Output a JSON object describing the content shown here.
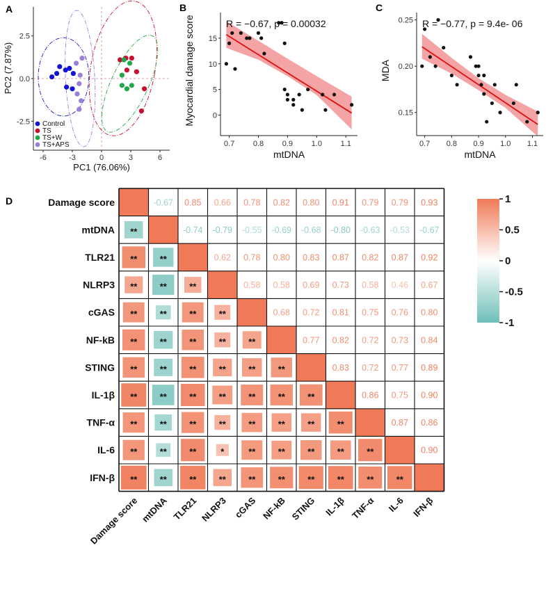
{
  "chart_data": [
    {
      "panel": "A",
      "type": "scatter",
      "xlabel": "PC1 (76.06%)",
      "ylabel": "PC2 (7.87%)",
      "xlim": [
        -7,
        7
      ],
      "ylim": [
        -4.2,
        4.2
      ],
      "xticks": [
        -6,
        -3,
        0,
        3,
        6
      ],
      "yticks": [
        -2.5,
        0.0,
        2.5
      ],
      "ytick_labels": [
        "-2.5",
        "0.0",
        "2.5"
      ],
      "legend": [
        "Control",
        "TS",
        "TS+W",
        "TS+APS"
      ],
      "colors": {
        "Control": "#1414d4",
        "TS": "#c8102e",
        "TS+W": "#22a84a",
        "TS+APS": "#9a7fd6"
      },
      "series": [
        {
          "name": "Control",
          "points": [
            [
              -5.1,
              0.1
            ],
            [
              -4.6,
              0.3
            ],
            [
              -4.3,
              0.7
            ],
            [
              -3.7,
              0.5
            ],
            [
              -3.6,
              -0.5
            ],
            [
              -3.3,
              0.6
            ],
            [
              -2.9,
              0.3
            ],
            [
              -3.0,
              -0.6
            ]
          ]
        },
        {
          "name": "TS",
          "points": [
            [
              1.9,
              1.1
            ],
            [
              2.5,
              1.2
            ],
            [
              3.1,
              1.2
            ],
            [
              2.6,
              0.5
            ],
            [
              3.6,
              0.4
            ],
            [
              4.4,
              -0.6
            ],
            [
              4.1,
              -1.9
            ]
          ]
        },
        {
          "name": "TS+W",
          "points": [
            [
              2.1,
              0.2
            ],
            [
              2.3,
              1.1
            ],
            [
              2.9,
              0.9
            ],
            [
              2.1,
              -0.4
            ],
            [
              2.6,
              -0.6
            ],
            [
              3.1,
              -0.4
            ]
          ]
        },
        {
          "name": "TS+APS",
          "points": [
            [
              -2.2,
              0.2
            ],
            [
              -2.3,
              -0.3
            ],
            [
              -2.5,
              -0.9
            ],
            [
              -2.1,
              -1.3
            ],
            [
              -2.3,
              -1.8
            ],
            [
              -2.0,
              1.2
            ],
            [
              -2.6,
              0.9
            ]
          ]
        }
      ],
      "ellipses": [
        {
          "name": "Control",
          "cx": -3.9,
          "cy": 0.1,
          "rx": 2.6,
          "ry": 2.3,
          "angle": 0
        },
        {
          "name": "TS",
          "cx": 2.2,
          "cy": 0.6,
          "rx": 3.3,
          "ry": 4.0,
          "angle": 10
        },
        {
          "name": "TS+W",
          "cx": 2.9,
          "cy": -0.3,
          "rx": 1.9,
          "ry": 3.1,
          "angle": 25
        },
        {
          "name": "TS+APS",
          "cx": -2.2,
          "cy": 0.0,
          "rx": 1.5,
          "ry": 4.0,
          "angle": -3
        }
      ]
    },
    {
      "panel": "B",
      "type": "scatter",
      "xlabel": "mtDNA",
      "ylabel": "Myocardial damage score",
      "stat_label": "R = −0.67, p = 0.00032",
      "xlim": [
        0.67,
        1.14
      ],
      "ylim": [
        -4,
        20
      ],
      "xticks": [
        0.7,
        0.8,
        0.9,
        1.0,
        1.1
      ],
      "xtick_labels": [
        "0.7",
        "0.8",
        "0.9",
        "1.0",
        "1.1"
      ],
      "yticks": [
        0,
        5,
        10,
        15
      ],
      "points": [
        [
          0.69,
          10
        ],
        [
          0.7,
          14
        ],
        [
          0.71,
          16
        ],
        [
          0.72,
          9
        ],
        [
          0.74,
          16
        ],
        [
          0.76,
          15
        ],
        [
          0.77,
          15
        ],
        [
          0.8,
          16
        ],
        [
          0.81,
          15
        ],
        [
          0.82,
          12
        ],
        [
          0.87,
          18
        ],
        [
          0.88,
          18
        ],
        [
          0.89,
          14
        ],
        [
          0.89,
          5
        ],
        [
          0.9,
          4
        ],
        [
          0.9,
          3
        ],
        [
          0.92,
          2
        ],
        [
          0.92,
          3
        ],
        [
          0.94,
          4
        ],
        [
          0.95,
          1
        ],
        [
          0.97,
          5
        ],
        [
          1.02,
          4
        ],
        [
          1.03,
          1
        ],
        [
          1.06,
          4
        ],
        [
          1.12,
          2
        ]
      ],
      "fit": {
        "x": [
          0.69,
          1.12
        ],
        "y": [
          15.7,
          0.4
        ]
      },
      "band": {
        "x": [
          0.69,
          0.8,
          0.9,
          1.0,
          1.12
        ],
        "lower": [
          13.1,
          10.8,
          7.6,
          3.9,
          -2.8
        ],
        "upper": [
          18.3,
          14.5,
          11.0,
          7.6,
          3.6
        ]
      }
    },
    {
      "panel": "C",
      "type": "scatter",
      "xlabel": "mtDNA",
      "ylabel": "MDA",
      "stat_label": "R = −0.77, p = 9.4e- 06",
      "xlim": [
        0.67,
        1.14
      ],
      "ylim": [
        0.125,
        0.258
      ],
      "xticks": [
        0.7,
        0.8,
        0.9,
        1.0,
        1.1
      ],
      "xtick_labels": [
        "0.7",
        "0.8",
        "0.9",
        "1.0",
        "1.1"
      ],
      "yticks": [
        0.15,
        0.2,
        0.25
      ],
      "ytick_labels": [
        "0.15",
        "0.20",
        "0.25"
      ],
      "points": [
        [
          0.69,
          0.2
        ],
        [
          0.7,
          0.24
        ],
        [
          0.72,
          0.21
        ],
        [
          0.74,
          0.2
        ],
        [
          0.75,
          0.25
        ],
        [
          0.77,
          0.22
        ],
        [
          0.8,
          0.19
        ],
        [
          0.82,
          0.18
        ],
        [
          0.87,
          0.21
        ],
        [
          0.89,
          0.2
        ],
        [
          0.9,
          0.19
        ],
        [
          0.9,
          0.2
        ],
        [
          0.91,
          0.18
        ],
        [
          0.92,
          0.19
        ],
        [
          0.92,
          0.17
        ],
        [
          0.93,
          0.14
        ],
        [
          0.95,
          0.16
        ],
        [
          0.96,
          0.18
        ],
        [
          0.98,
          0.15
        ],
        [
          1.03,
          0.16
        ],
        [
          1.04,
          0.18
        ],
        [
          1.08,
          0.14
        ],
        [
          1.12,
          0.15
        ]
      ],
      "fit": {
        "x": [
          0.69,
          1.12
        ],
        "y": [
          0.221,
          0.137
        ]
      },
      "band": {
        "x": [
          0.69,
          0.8,
          0.9,
          1.0,
          1.12
        ],
        "lower": [
          0.208,
          0.192,
          0.174,
          0.155,
          0.124
        ],
        "upper": [
          0.235,
          0.209,
          0.187,
          0.169,
          0.151
        ]
      }
    },
    {
      "panel": "D",
      "type": "heatmap",
      "variables": [
        "Damage score",
        "mtDNA",
        "TLR21",
        "NLRP3",
        "cGAS",
        "NF-kB",
        "STING",
        "IL-1β",
        "TNF-α",
        "IL-6",
        "IFN-β"
      ],
      "upper_labels": [
        [
          "",
          "-0.67",
          "0.85",
          "0.66",
          "0.78",
          "0.82",
          "0.80",
          "0.91",
          "0.79",
          "0.79",
          "0.93"
        ],
        [
          "",
          "",
          "-0.74",
          "-0.79",
          "-0.55",
          "-0.69",
          "-0.68",
          "-0.80",
          "-0.63",
          "-0.53",
          "-0.67"
        ],
        [
          "",
          "",
          "",
          "0.62",
          "0.78",
          "0.80",
          "0.83",
          "0.87",
          "0.82",
          "0.87",
          "0.92"
        ],
        [
          "",
          "",
          "",
          "",
          "0.58",
          "0.58",
          "0.69",
          "0.73",
          "0.58",
          "0.46",
          "0.67"
        ],
        [
          "",
          "",
          "",
          "",
          "",
          "0.68",
          "0.72",
          "0.81",
          "0.75",
          "0.76",
          "0.80"
        ],
        [
          "",
          "",
          "",
          "",
          "",
          "",
          "0.77",
          "0.82",
          "0.72",
          "0.73",
          "0.84"
        ],
        [
          "",
          "",
          "",
          "",
          "",
          "",
          "",
          "0.83",
          "0.72",
          "0.77",
          "0.89"
        ],
        [
          "",
          "",
          "",
          "",
          "",
          "",
          "",
          "",
          "0.86",
          "0.75",
          "0.90"
        ],
        [
          "",
          "",
          "",
          "",
          "",
          "",
          "",
          "",
          "",
          "0.87",
          "0.86"
        ],
        [
          "",
          "",
          "",
          "",
          "",
          "",
          "",
          "",
          "",
          "",
          "0.90"
        ],
        [
          "",
          "",
          "",
          "",
          "",
          "",
          "",
          "",
          "",
          "",
          ""
        ]
      ],
      "stars_labels": [
        [
          "",
          "",
          "",
          "",
          "",
          "",
          "",
          "",
          "",
          "",
          ""
        ],
        [
          "**",
          "",
          "",
          "",
          "",
          "",
          "",
          "",
          "",
          "",
          ""
        ],
        [
          "**",
          "**",
          "",
          "",
          "",
          "",
          "",
          "",
          "",
          "",
          ""
        ],
        [
          "**",
          "**",
          "**",
          "",
          "",
          "",
          "",
          "",
          "",
          "",
          ""
        ],
        [
          "**",
          "**",
          "**",
          "**",
          "",
          "",
          "",
          "",
          "",
          "",
          ""
        ],
        [
          "**",
          "**",
          "**",
          "**",
          "**",
          "",
          "",
          "",
          "",
          "",
          ""
        ],
        [
          "**",
          "**",
          "**",
          "**",
          "**",
          "**",
          "",
          "",
          "",
          "",
          ""
        ],
        [
          "**",
          "**",
          "**",
          "**",
          "**",
          "**",
          "**",
          "",
          "",
          "",
          ""
        ],
        [
          "**",
          "**",
          "**",
          "**",
          "**",
          "**",
          "**",
          "**",
          "",
          "",
          ""
        ],
        [
          "**",
          "**",
          "**",
          "*",
          "**",
          "**",
          "**",
          "**",
          "**",
          "",
          ""
        ],
        [
          "**",
          "**",
          "**",
          "**",
          "**",
          "**",
          "**",
          "**",
          "**",
          "**",
          ""
        ]
      ],
      "colorbar": {
        "range": [
          -1,
          1
        ],
        "tick_labels": [
          "1",
          "0.5",
          "0",
          "-0.5",
          "-1"
        ],
        "colors": {
          "high": "#f07a57",
          "mid": "#ffffff",
          "low": "#6fbfb8"
        }
      }
    }
  ],
  "panel_labels": [
    "A",
    "B",
    "C",
    "D"
  ]
}
